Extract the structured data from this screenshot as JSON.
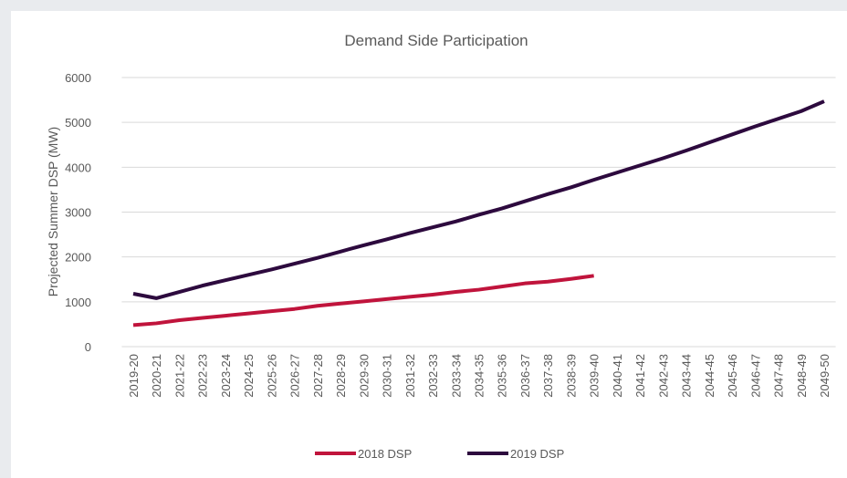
{
  "chart_data": {
    "type": "line",
    "title": "Demand Side Participation",
    "y_label": "Projected Summer DSP (MW)",
    "categories": [
      "2019-20",
      "2020-21",
      "2021-22",
      "2022-23",
      "2023-24",
      "2024-25",
      "2025-26",
      "2026-27",
      "2027-28",
      "2028-29",
      "2029-30",
      "2030-31",
      "2031-32",
      "2032-33",
      "2033-34",
      "2034-35",
      "2035-36",
      "2036-37",
      "2037-38",
      "2038-39",
      "2039-40",
      "2040-41",
      "2041-42",
      "2042-43",
      "2043-44",
      "2044-45",
      "2045-46",
      "2046-47",
      "2047-48",
      "2048-49",
      "2049-50"
    ],
    "series": [
      {
        "name": "2018 DSP",
        "color": "#c0143c",
        "values": [
          480,
          520,
          590,
          640,
          690,
          740,
          790,
          840,
          910,
          960,
          1010,
          1060,
          1110,
          1160,
          1220,
          1270,
          1340,
          1410,
          1450,
          1510,
          1580,
          null,
          null,
          null,
          null,
          null,
          null,
          null,
          null,
          null,
          null
        ]
      },
      {
        "name": "2019 DSP",
        "color": "#2d0a3e",
        "values": [
          1180,
          1080,
          1220,
          1360,
          1480,
          1600,
          1720,
          1850,
          1980,
          2120,
          2260,
          2390,
          2530,
          2660,
          2790,
          2940,
          3080,
          3240,
          3400,
          3550,
          3720,
          3880,
          4040,
          4200,
          4370,
          4550,
          4730,
          4910,
          5080,
          5250,
          5470
        ]
      }
    ],
    "ylim": [
      0,
      6000
    ],
    "yticks": [
      0,
      1000,
      2000,
      3000,
      4000,
      5000,
      6000
    ],
    "grid": true,
    "legend": "bottom"
  }
}
